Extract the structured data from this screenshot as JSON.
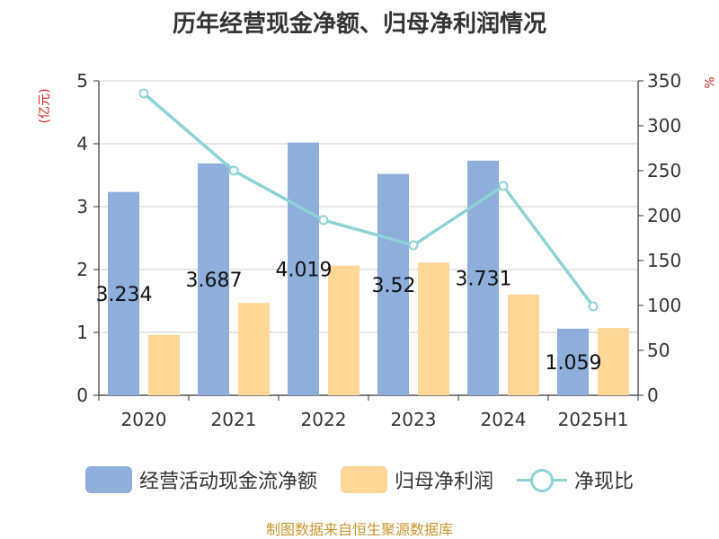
{
  "chart_data": {
    "type": "bar",
    "title": "历年经营现金净额、归母净利润情况",
    "categories": [
      "2020",
      "2021",
      "2022",
      "2023",
      "2024",
      "2025H1"
    ],
    "series": [
      {
        "name": "经营活动现金流净额",
        "type": "bar",
        "axis": "left",
        "color": "#8eaedb",
        "values": [
          3.234,
          3.687,
          4.019,
          3.52,
          3.731,
          1.059
        ]
      },
      {
        "name": "归母净利润",
        "type": "bar",
        "axis": "left",
        "color": "#ffd898",
        "values": [
          0.96,
          1.47,
          2.06,
          2.11,
          1.6,
          1.07
        ]
      },
      {
        "name": "净现比",
        "type": "line",
        "axis": "right",
        "color": "#8dd3d6",
        "values": [
          336,
          250,
          195,
          167,
          233,
          99
        ]
      }
    ],
    "data_labels": [
      "3.234",
      "3.687",
      "4.019",
      "3.52",
      "3.731",
      "1.059"
    ],
    "left_axis": {
      "unit": "(亿元)",
      "min": 0,
      "max": 5,
      "ticks": [
        "0",
        "1",
        "2",
        "3",
        "4",
        "5"
      ]
    },
    "right_axis": {
      "unit": "%",
      "min": 0,
      "max": 350,
      "ticks": [
        "0",
        "50",
        "100",
        "150",
        "200",
        "250",
        "300",
        "350"
      ]
    },
    "grid": true,
    "legend_position": "bottom"
  },
  "source": "制图数据来自恒生聚源数据库"
}
